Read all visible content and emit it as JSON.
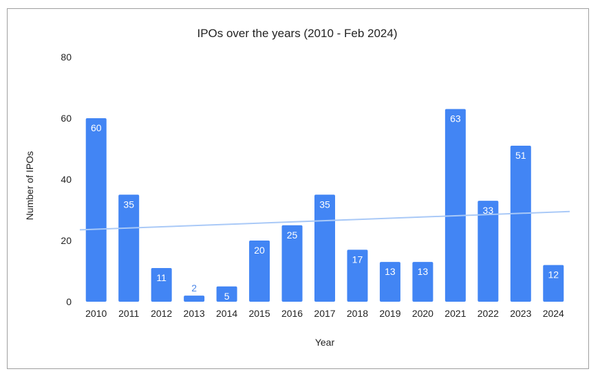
{
  "chart_data": {
    "type": "bar",
    "title": "IPOs over the years (2010 - Feb 2024)",
    "xlabel": "Year",
    "ylabel": "Number of IPOs",
    "ylim": [
      0,
      80
    ],
    "yticks": [
      0,
      20,
      40,
      60,
      80
    ],
    "grid": false,
    "legend": "none",
    "categories": [
      "2010",
      "2011",
      "2012",
      "2013",
      "2014",
      "2015",
      "2016",
      "2017",
      "2018",
      "2019",
      "2020",
      "2021",
      "2022",
      "2023",
      "2024"
    ],
    "values": [
      60,
      35,
      11,
      2,
      5,
      20,
      25,
      35,
      17,
      13,
      13,
      63,
      33,
      51,
      12
    ],
    "trendline": {
      "type": "linear",
      "start": 23.5,
      "end": 29.5
    },
    "colors": {
      "bar": "#4285f4",
      "trendline": "#a9c9f7",
      "label_inside": "#ffffff",
      "label_outside": "#4a86e8"
    }
  }
}
